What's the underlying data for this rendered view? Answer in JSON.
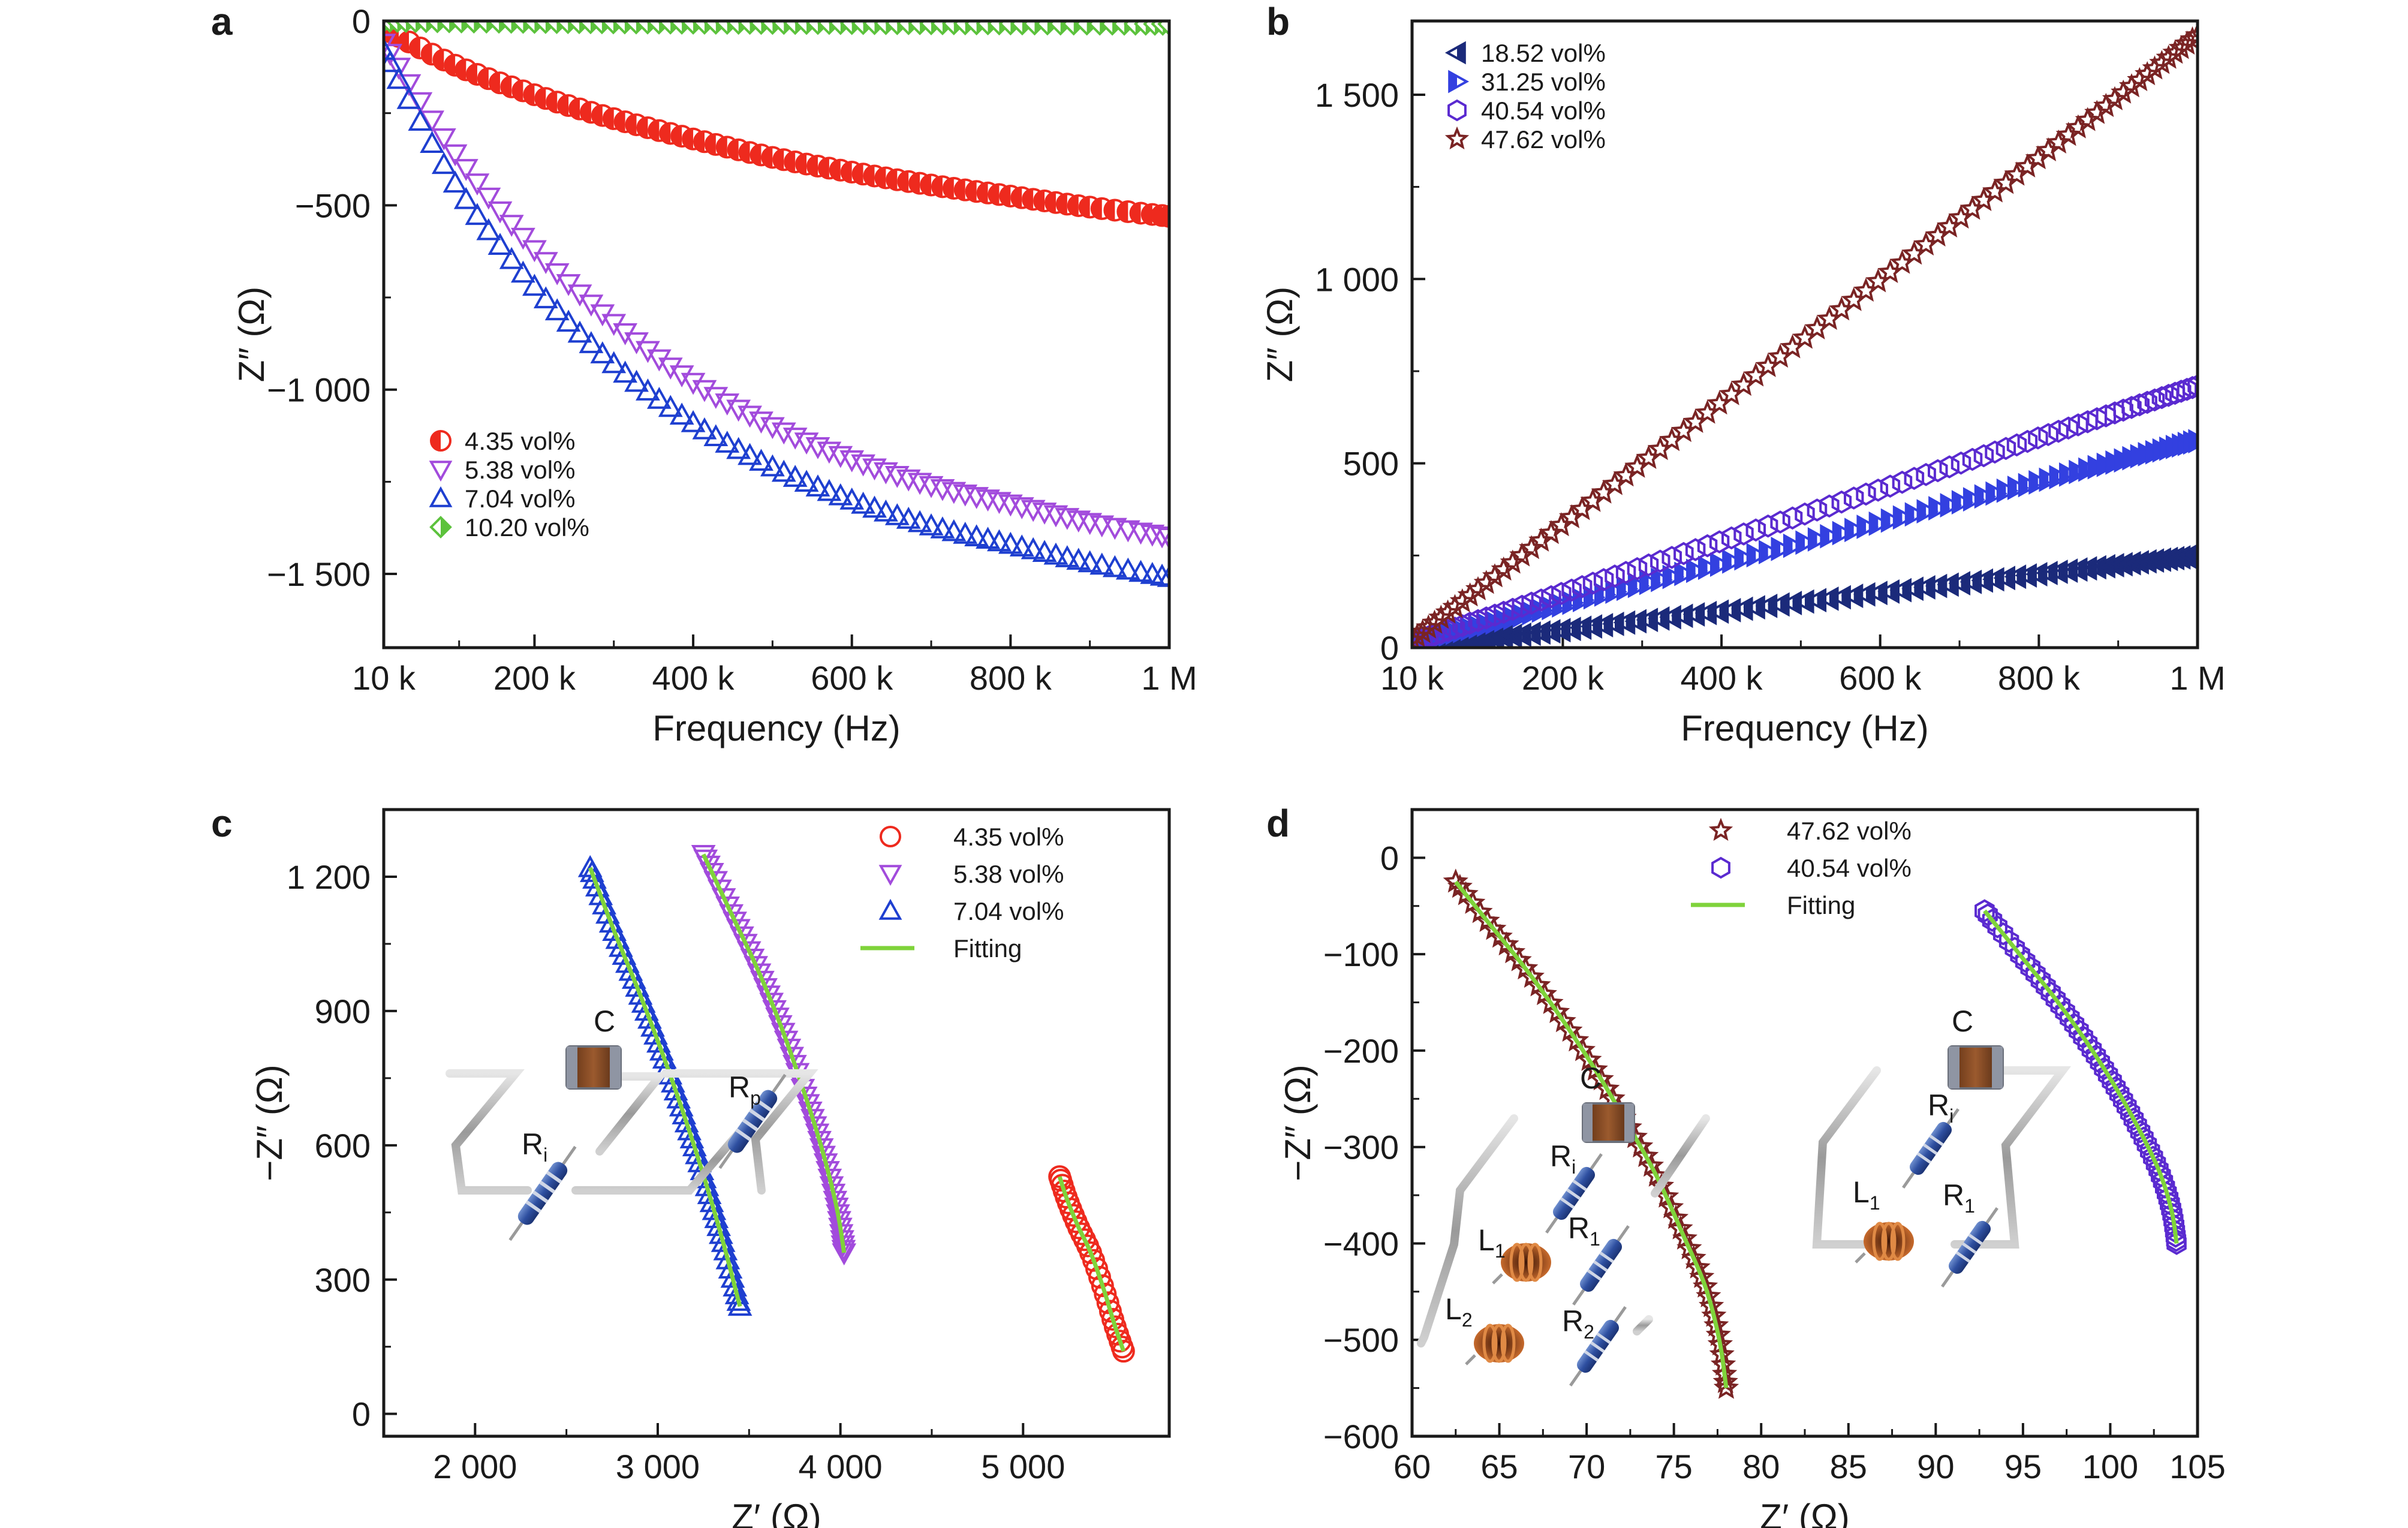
{
  "colors": {
    "red": "#ee2a1e",
    "violet": "#a24bdc",
    "blue": "#1e3fd0",
    "green": "#5cc23c",
    "navy": "#1b2a7a",
    "royal": "#3340e0",
    "purple": "#5a2ad0",
    "maroon": "#7a2424",
    "fit": "#7fd33a"
  },
  "chart_data": [
    {
      "panel": "a",
      "type": "scatter",
      "xlabel": "Frequency (Hz)",
      "ylabel": "Z″ (Ω)",
      "xlim": [
        10000,
        1000000
      ],
      "ylim": [
        -1700,
        0
      ],
      "xticks": [
        10000,
        200000,
        400000,
        600000,
        800000,
        1000000
      ],
      "xtick_labels": [
        "10 k",
        "200 k",
        "400 k",
        "600 k",
        "800 k",
        "1 M"
      ],
      "yticks": [
        0,
        -500,
        -1000,
        -1500
      ],
      "ytick_labels": [
        "0",
        "−500",
        "−1 000",
        "−1 500"
      ],
      "legend_position": "lower-left",
      "series": [
        {
          "name": "4.35 vol%",
          "marker": "half-circle",
          "color": "red",
          "x": [
            10000,
            100000,
            200000,
            300000,
            400000,
            500000,
            600000,
            700000,
            800000,
            900000,
            1000000
          ],
          "y": [
            -20,
            -120,
            -200,
            -265,
            -320,
            -370,
            -410,
            -445,
            -475,
            -505,
            -530
          ]
        },
        {
          "name": "5.38 vol%",
          "marker": "triangle-down",
          "color": "violet",
          "x": [
            10000,
            100000,
            200000,
            300000,
            400000,
            500000,
            600000,
            700000,
            800000,
            900000,
            1000000
          ],
          "y": [
            -60,
            -360,
            -620,
            -820,
            -980,
            -1100,
            -1190,
            -1260,
            -1310,
            -1360,
            -1400
          ]
        },
        {
          "name": "7.04 vol%",
          "marker": "triangle-up",
          "color": "blue",
          "x": [
            10000,
            100000,
            200000,
            300000,
            400000,
            500000,
            600000,
            700000,
            800000,
            900000,
            1000000
          ],
          "y": [
            -80,
            -440,
            -720,
            -930,
            -1090,
            -1210,
            -1300,
            -1370,
            -1420,
            -1470,
            -1510
          ]
        },
        {
          "name": "10.20 vol%",
          "marker": "half-diamond",
          "color": "green",
          "x": [
            10000,
            200000,
            400000,
            600000,
            800000,
            1000000
          ],
          "y": [
            0,
            -3,
            -5,
            -6,
            -7,
            -8
          ]
        }
      ]
    },
    {
      "panel": "b",
      "type": "scatter",
      "xlabel": "Frequency (Hz)",
      "ylabel": "Z″ (Ω)",
      "xlim": [
        10000,
        1000000
      ],
      "ylim": [
        0,
        1700
      ],
      "xticks": [
        10000,
        200000,
        400000,
        600000,
        800000,
        1000000
      ],
      "xtick_labels": [
        "10 k",
        "200 k",
        "400 k",
        "600 k",
        "800 k",
        "1 M"
      ],
      "yticks": [
        0,
        500,
        1000,
        1500
      ],
      "ytick_labels": [
        "0",
        "500",
        "1 000",
        "1 500"
      ],
      "legend_position": "top-left",
      "series": [
        {
          "name": "18.52 vol%",
          "marker": "triangle-left",
          "color": "navy",
          "x": [
            10000,
            1000000
          ],
          "y": [
            0,
            250
          ]
        },
        {
          "name": "31.25 vol%",
          "marker": "triangle-right",
          "color": "royal",
          "x": [
            10000,
            1000000
          ],
          "y": [
            10,
            560
          ]
        },
        {
          "name": "40.54 vol%",
          "marker": "hexagon",
          "color": "purple",
          "x": [
            10000,
            1000000
          ],
          "y": [
            15,
            710
          ]
        },
        {
          "name": "47.62 vol%",
          "marker": "star",
          "color": "maroon",
          "x": [
            10000,
            1000000
          ],
          "y": [
            20,
            1660
          ]
        }
      ]
    },
    {
      "panel": "c",
      "type": "scatter",
      "xlabel": "Z′ (Ω)",
      "ylabel": "−Z″ (Ω)",
      "xlim": [
        1500,
        5800
      ],
      "ylim": [
        -50,
        1350
      ],
      "xticks": [
        2000,
        3000,
        4000,
        5000
      ],
      "xtick_labels": [
        "2 000",
        "3 000",
        "4 000",
        "5 000"
      ],
      "yticks": [
        0,
        300,
        600,
        900,
        1200
      ],
      "ytick_labels": [
        "0",
        "300",
        "600",
        "900",
        "1 200"
      ],
      "legend_position": "top-right",
      "series": [
        {
          "name": "4.35 vol%",
          "marker": "circle",
          "color": "red",
          "x": [
            5200,
            5240,
            5300,
            5370,
            5440,
            5500,
            5550
          ],
          "y": [
            530,
            480,
            420,
            360,
            280,
            200,
            140
          ]
        },
        {
          "name": "5.38 vol%",
          "marker": "triangle-down",
          "color": "violet",
          "x": [
            3250,
            3400,
            3550,
            3680,
            3800,
            3900,
            3980,
            4020
          ],
          "y": [
            1250,
            1120,
            990,
            860,
            720,
            590,
            460,
            360
          ]
        },
        {
          "name": "7.04 vol%",
          "marker": "triangle-up",
          "color": "blue",
          "x": [
            2630,
            2760,
            2900,
            3030,
            3150,
            3260,
            3360,
            3450
          ],
          "y": [
            1220,
            1080,
            940,
            800,
            660,
            520,
            380,
            240
          ]
        },
        {
          "name": "Fitting",
          "marker": "line",
          "color": "fit",
          "x": [],
          "y": []
        }
      ],
      "circuit_labels": {
        "c": "C",
        "rp": "R",
        "rp_sub": "p",
        "ri": "R",
        "ri_sub": "i"
      }
    },
    {
      "panel": "d",
      "type": "scatter",
      "xlabel": "Z′ (Ω)",
      "ylabel": "−Z″ (Ω)",
      "xlim": [
        60,
        105
      ],
      "ylim": [
        -600,
        50
      ],
      "xticks": [
        60,
        65,
        70,
        75,
        80,
        85,
        90,
        95,
        100,
        105
      ],
      "xtick_labels": [
        "60",
        "65",
        "70",
        "75",
        "80",
        "85",
        "90",
        "95",
        "100",
        "105"
      ],
      "yticks": [
        0,
        -100,
        -200,
        -300,
        -400,
        -500,
        -600
      ],
      "ytick_labels": [
        "0",
        "−100",
        "−200",
        "−300",
        "−400",
        "−500",
        "−600"
      ],
      "legend_position": "top-center",
      "series": [
        {
          "name": "47.62 vol%",
          "marker": "star",
          "color": "maroon",
          "x": [
            62.5,
            64.5,
            66.5,
            68.5,
            70.5,
            72.3,
            74.0,
            75.5,
            76.8,
            77.6,
            78.0
          ],
          "y": [
            -25,
            -70,
            -115,
            -165,
            -220,
            -275,
            -330,
            -390,
            -445,
            -500,
            -550
          ]
        },
        {
          "name": "40.54 vol%",
          "marker": "hexagon",
          "color": "purple",
          "x": [
            92.8,
            94.8,
            96.8,
            98.6,
            100.2,
            101.6,
            102.8,
            103.5,
            103.8
          ],
          "y": [
            -55,
            -100,
            -145,
            -190,
            -235,
            -280,
            -325,
            -365,
            -400
          ]
        },
        {
          "name": "Fitting",
          "marker": "line",
          "color": "fit",
          "x": [],
          "y": []
        }
      ],
      "circuit_labels": {
        "c_left": "C",
        "ri_left": "R",
        "ri_left_sub": "i",
        "l1_left": "L",
        "l1_left_sub": "1",
        "r1_left": "R",
        "r1_left_sub": "1",
        "l2": "L",
        "l2_sub": "2",
        "r2": "R",
        "r2_sub": "2",
        "c_right": "C",
        "ri_right": "R",
        "ri_right_sub": "i",
        "l1_right": "L",
        "l1_right_sub": "1",
        "r1_right": "R",
        "r1_right_sub": "1"
      }
    }
  ]
}
